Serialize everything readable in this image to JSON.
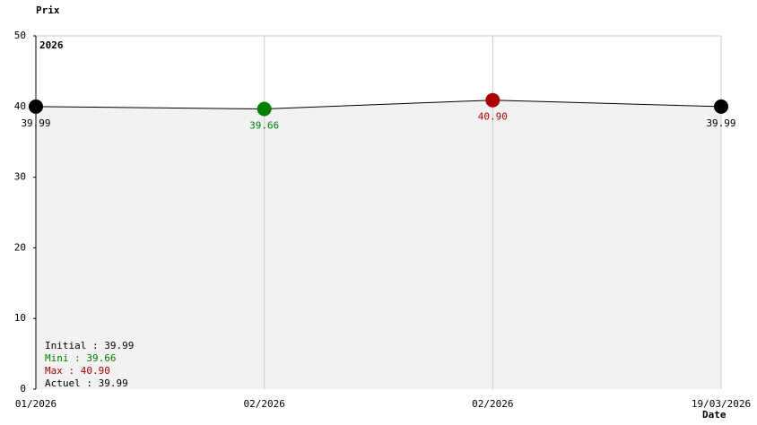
{
  "chart_data": {
    "type": "line",
    "y_label": "Prix",
    "x_label": "Date",
    "year_label": "2026",
    "categories": [
      "01/2026",
      "02/2026",
      "02/2026",
      "19/03/2026"
    ],
    "series": [
      {
        "name": "Prix",
        "color": "#000000",
        "values": [
          39.99,
          39.66,
          40.9,
          39.99
        ],
        "value_labels": [
          "39.99",
          "39.66",
          "40.90",
          "39.99"
        ],
        "point_colors": [
          "#000000",
          "#008000",
          "#aa0000",
          "#000000"
        ]
      }
    ],
    "ylim": [
      0,
      50
    ],
    "yticks": [
      0,
      10,
      20,
      30,
      40,
      50
    ],
    "area_color": "#f2f2f2",
    "grid_color": "#cccccc",
    "summary": [
      {
        "text": "Initial : 39.99",
        "color": "#000000"
      },
      {
        "text": "Mini : 39.66",
        "color": "#008000"
      },
      {
        "text": "Max : 40.90",
        "color": "#aa0000"
      },
      {
        "text": "Actuel : 39.99",
        "color": "#000000"
      }
    ]
  }
}
